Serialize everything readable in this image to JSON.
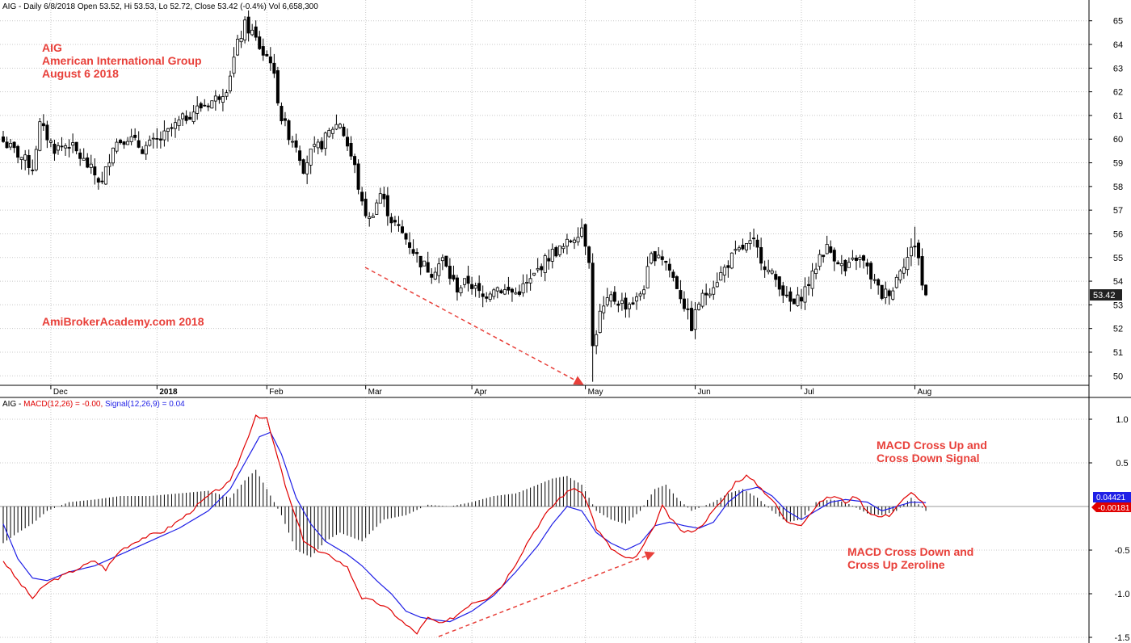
{
  "colors": {
    "grid": "#c8c8c8",
    "up_candle": "#ffffff",
    "down_candle": "#000000",
    "macd": "#e00000",
    "signal": "#1f1fe6",
    "annotation": "#e8403a",
    "histogram": "#000000",
    "price_label_bg": "#222222",
    "signal_label_bg": "#1f1fe6",
    "macd_label_bg": "#e00000"
  },
  "header": {
    "ticker": "AIG",
    "info": "AIG - Daily 6/8/2018 Open 53.52, Hi 53.53, Lo 52.72, Close 53.42 (-0.4%) Vol 6,658,300"
  },
  "annotations": {
    "line1": "AIG",
    "line2": "American International Group",
    "line3": "August 6 2018",
    "site": "AmiBrokerAcademy.com  2018",
    "macd_note1_l1": "MACD Cross Up and",
    "macd_note1_l2": "Cross Down Signal",
    "macd_note2_l1": "MACD Cross Down and",
    "macd_note2_l2": "Cross Up Zeroline"
  },
  "indicator_header": {
    "prefix": "AIG - ",
    "macd_label": "MACD(12,26) = -0.00,",
    "signal_label": "Signal(12,26,9) = 0.04"
  },
  "chart_data": [
    {
      "type": "candlestick",
      "x_ticks": [
        {
          "label": "Dec",
          "index": 13
        },
        {
          "label": "2018",
          "index": 42
        },
        {
          "label": "Feb",
          "index": 72
        },
        {
          "label": "Mar",
          "index": 99
        },
        {
          "label": "Apr",
          "index": 128
        },
        {
          "label": "May",
          "index": 159
        },
        {
          "label": "Jun",
          "index": 189
        },
        {
          "label": "Jul",
          "index": 218
        },
        {
          "label": "Aug",
          "index": 249
        }
      ],
      "y_ticks": [
        50,
        51,
        52,
        53,
        54,
        55,
        56,
        57,
        58,
        59,
        60,
        61,
        62,
        63,
        64,
        65
      ],
      "ylim": [
        49.6,
        65.4
      ],
      "last_price_label": "53.42",
      "last_price": 53.42,
      "anchors": [
        [
          0,
          59.9
        ],
        [
          6,
          59.1
        ],
        [
          8,
          58.8
        ],
        [
          10,
          60.6
        ],
        [
          14,
          59.6
        ],
        [
          18,
          59.8
        ],
        [
          24,
          58.7
        ],
        [
          27,
          58.1
        ],
        [
          30,
          59.8
        ],
        [
          34,
          60.1
        ],
        [
          38,
          59.6
        ],
        [
          43,
          60.0
        ],
        [
          48,
          60.7
        ],
        [
          52,
          61.2
        ],
        [
          58,
          61.7
        ],
        [
          61,
          62.2
        ],
        [
          64,
          64.0
        ],
        [
          66,
          64.8
        ],
        [
          68,
          64.5
        ],
        [
          71,
          63.6
        ],
        [
          73,
          63.4
        ],
        [
          76,
          60.9
        ],
        [
          78,
          60.2
        ],
        [
          80,
          59.8
        ],
        [
          82,
          58.8
        ],
        [
          84,
          59.4
        ],
        [
          87,
          59.8
        ],
        [
          90,
          60.5
        ],
        [
          92,
          60.7
        ],
        [
          96,
          58.8
        ],
        [
          98,
          57.2
        ],
        [
          100,
          56.6
        ],
        [
          103,
          57.7
        ],
        [
          106,
          56.6
        ],
        [
          110,
          55.8
        ],
        [
          114,
          54.8
        ],
        [
          117,
          54.4
        ],
        [
          120,
          54.9
        ],
        [
          122,
          54.2
        ],
        [
          124,
          53.7
        ],
        [
          127,
          54.0
        ],
        [
          131,
          53.3
        ],
        [
          134,
          53.8
        ],
        [
          137,
          53.6
        ],
        [
          140,
          53.5
        ],
        [
          144,
          54.0
        ],
        [
          147,
          54.7
        ],
        [
          150,
          55.2
        ],
        [
          153,
          55.4
        ],
        [
          156,
          55.9
        ],
        [
          158,
          56.3
        ],
        [
          160,
          55.0
        ],
        [
          161,
          51.2
        ],
        [
          163,
          52.6
        ],
        [
          166,
          53.3
        ],
        [
          170,
          53.0
        ],
        [
          173,
          53.2
        ],
        [
          175,
          53.8
        ],
        [
          177,
          55.0
        ],
        [
          179,
          55.2
        ],
        [
          181,
          54.8
        ],
        [
          184,
          53.8
        ],
        [
          186,
          53.0
        ],
        [
          188,
          52.1
        ],
        [
          190,
          53.1
        ],
        [
          193,
          53.7
        ],
        [
          196,
          54.3
        ],
        [
          199,
          55.0
        ],
        [
          202,
          55.4
        ],
        [
          205,
          55.6
        ],
        [
          207,
          55.0
        ],
        [
          209,
          54.4
        ],
        [
          212,
          53.9
        ],
        [
          214,
          53.2
        ],
        [
          216,
          53.0
        ],
        [
          218,
          53.4
        ],
        [
          221,
          54.2
        ],
        [
          223,
          55.1
        ],
        [
          225,
          55.4
        ],
        [
          228,
          54.9
        ],
        [
          230,
          54.4
        ],
        [
          233,
          55.0
        ],
        [
          235,
          54.8
        ],
        [
          237,
          54.2
        ],
        [
          240,
          53.4
        ],
        [
          243,
          53.7
        ],
        [
          245,
          54.6
        ],
        [
          247,
          55.0
        ],
        [
          249,
          55.6
        ],
        [
          250,
          55.0
        ],
        [
          251,
          53.8
        ],
        [
          252,
          53.42
        ]
      ],
      "count": 253
    },
    {
      "type": "line",
      "name": "MACD / Signal",
      "y_ticks": [
        -1.5,
        -1.0,
        -0.5,
        0.5,
        1.0
      ],
      "ylim": [
        -1.48,
        1.2
      ],
      "macd_value_label": "-0.00181",
      "signal_value_label": "0.04421",
      "macd_anchors": [
        [
          0,
          -0.62
        ],
        [
          4,
          -0.85
        ],
        [
          8,
          -1.05
        ],
        [
          12,
          -0.88
        ],
        [
          16,
          -0.8
        ],
        [
          20,
          -0.72
        ],
        [
          25,
          -0.62
        ],
        [
          28,
          -0.72
        ],
        [
          32,
          -0.5
        ],
        [
          38,
          -0.36
        ],
        [
          44,
          -0.28
        ],
        [
          50,
          -0.1
        ],
        [
          56,
          0.12
        ],
        [
          62,
          0.28
        ],
        [
          66,
          0.7
        ],
        [
          69,
          1.05
        ],
        [
          72,
          1.0
        ],
        [
          75,
          0.55
        ],
        [
          78,
          0.1
        ],
        [
          82,
          -0.38
        ],
        [
          86,
          -0.52
        ],
        [
          90,
          -0.58
        ],
        [
          94,
          -0.7
        ],
        [
          98,
          -1.05
        ],
        [
          102,
          -1.1
        ],
        [
          106,
          -1.2
        ],
        [
          110,
          -1.36
        ],
        [
          113,
          -1.45
        ],
        [
          116,
          -1.28
        ],
        [
          120,
          -1.35
        ],
        [
          124,
          -1.24
        ],
        [
          128,
          -1.1
        ],
        [
          132,
          -1.05
        ],
        [
          136,
          -0.92
        ],
        [
          140,
          -0.65
        ],
        [
          144,
          -0.35
        ],
        [
          148,
          -0.1
        ],
        [
          152,
          0.1
        ],
        [
          156,
          0.22
        ],
        [
          159,
          0.1
        ],
        [
          162,
          -0.25
        ],
        [
          166,
          -0.48
        ],
        [
          170,
          -0.6
        ],
        [
          173,
          -0.58
        ],
        [
          177,
          -0.3
        ],
        [
          180,
          0.0
        ],
        [
          183,
          -0.18
        ],
        [
          186,
          -0.3
        ],
        [
          190,
          -0.25
        ],
        [
          194,
          -0.05
        ],
        [
          197,
          0.1
        ],
        [
          200,
          0.28
        ],
        [
          203,
          0.35
        ],
        [
          206,
          0.25
        ],
        [
          210,
          0.08
        ],
        [
          214,
          -0.18
        ],
        [
          218,
          -0.2
        ],
        [
          221,
          -0.05
        ],
        [
          224,
          0.08
        ],
        [
          227,
          0.12
        ],
        [
          230,
          0.05
        ],
        [
          233,
          0.12
        ],
        [
          236,
          -0.05
        ],
        [
          239,
          -0.12
        ],
        [
          242,
          -0.1
        ],
        [
          245,
          0.05
        ],
        [
          248,
          0.15
        ],
        [
          250,
          0.1
        ],
        [
          252,
          -0.002
        ]
      ],
      "signal_anchors": [
        [
          0,
          -0.2
        ],
        [
          4,
          -0.6
        ],
        [
          8,
          -0.82
        ],
        [
          12,
          -0.85
        ],
        [
          18,
          -0.75
        ],
        [
          25,
          -0.68
        ],
        [
          32,
          -0.55
        ],
        [
          40,
          -0.4
        ],
        [
          48,
          -0.25
        ],
        [
          56,
          -0.05
        ],
        [
          62,
          0.2
        ],
        [
          66,
          0.5
        ],
        [
          70,
          0.8
        ],
        [
          73,
          0.85
        ],
        [
          76,
          0.6
        ],
        [
          80,
          0.1
        ],
        [
          84,
          -0.2
        ],
        [
          88,
          -0.4
        ],
        [
          94,
          -0.55
        ],
        [
          98,
          -0.68
        ],
        [
          102,
          -0.85
        ],
        [
          106,
          -1.0
        ],
        [
          110,
          -1.2
        ],
        [
          114,
          -1.27
        ],
        [
          118,
          -1.3
        ],
        [
          122,
          -1.32
        ],
        [
          128,
          -1.2
        ],
        [
          134,
          -1.02
        ],
        [
          140,
          -0.75
        ],
        [
          146,
          -0.45
        ],
        [
          150,
          -0.2
        ],
        [
          154,
          0.0
        ],
        [
          158,
          -0.05
        ],
        [
          162,
          -0.3
        ],
        [
          166,
          -0.42
        ],
        [
          170,
          -0.5
        ],
        [
          174,
          -0.42
        ],
        [
          178,
          -0.22
        ],
        [
          182,
          -0.18
        ],
        [
          186,
          -0.22
        ],
        [
          190,
          -0.25
        ],
        [
          194,
          -0.18
        ],
        [
          198,
          0.05
        ],
        [
          202,
          0.18
        ],
        [
          206,
          0.22
        ],
        [
          210,
          0.12
        ],
        [
          214,
          -0.05
        ],
        [
          218,
          -0.15
        ],
        [
          222,
          -0.05
        ],
        [
          226,
          0.05
        ],
        [
          230,
          0.08
        ],
        [
          236,
          0.05
        ],
        [
          240,
          -0.05
        ],
        [
          244,
          0.0
        ],
        [
          248,
          0.05
        ],
        [
          252,
          0.044
        ]
      ],
      "histogram_anchors": [
        [
          0,
          -0.42
        ],
        [
          4,
          -0.3
        ],
        [
          8,
          -0.2
        ],
        [
          12,
          -0.05
        ],
        [
          18,
          0.05
        ],
        [
          25,
          0.08
        ],
        [
          32,
          0.12
        ],
        [
          40,
          0.12
        ],
        [
          48,
          0.15
        ],
        [
          56,
          0.18
        ],
        [
          62,
          0.1
        ],
        [
          66,
          0.3
        ],
        [
          69,
          0.42
        ],
        [
          72,
          0.2
        ],
        [
          76,
          -0.1
        ],
        [
          80,
          -0.5
        ],
        [
          84,
          -0.58
        ],
        [
          88,
          -0.4
        ],
        [
          92,
          -0.3
        ],
        [
          98,
          -0.4
        ],
        [
          104,
          -0.15
        ],
        [
          110,
          -0.1
        ],
        [
          116,
          0.02
        ],
        [
          122,
          0.0
        ],
        [
          128,
          0.05
        ],
        [
          134,
          0.12
        ],
        [
          140,
          0.15
        ],
        [
          146,
          0.25
        ],
        [
          150,
          0.32
        ],
        [
          154,
          0.35
        ],
        [
          158,
          0.25
        ],
        [
          162,
          -0.05
        ],
        [
          166,
          -0.15
        ],
        [
          170,
          -0.2
        ],
        [
          174,
          -0.05
        ],
        [
          178,
          0.2
        ],
        [
          181,
          0.25
        ],
        [
          184,
          0.1
        ],
        [
          188,
          -0.05
        ],
        [
          194,
          0.05
        ],
        [
          198,
          0.15
        ],
        [
          202,
          0.2
        ],
        [
          206,
          0.1
        ],
        [
          210,
          -0.05
        ],
        [
          214,
          -0.18
        ],
        [
          218,
          -0.15
        ],
        [
          222,
          0.05
        ],
        [
          226,
          0.08
        ],
        [
          230,
          0.05
        ],
        [
          236,
          -0.08
        ],
        [
          240,
          -0.1
        ],
        [
          244,
          -0.05
        ],
        [
          248,
          0.1
        ],
        [
          252,
          -0.05
        ]
      ]
    }
  ]
}
